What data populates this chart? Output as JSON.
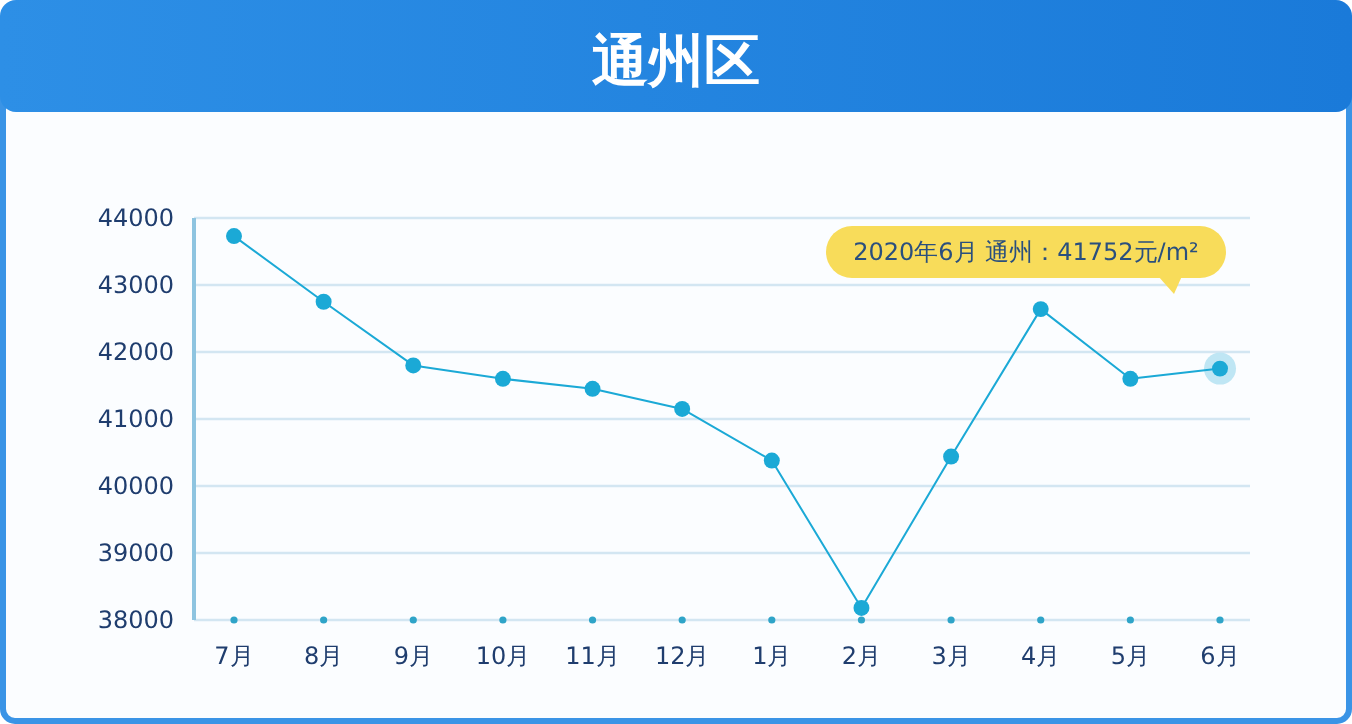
{
  "chart_data": {
    "type": "line",
    "title": "通州区",
    "categories": [
      "7月",
      "8月",
      "9月",
      "10月",
      "11月",
      "12月",
      "1月",
      "2月",
      "3月",
      "4月",
      "5月",
      "6月"
    ],
    "series": [
      {
        "color": "#1ba9d6",
        "values": [
          43730,
          42750,
          41800,
          41600,
          41450,
          41150,
          40380,
          38180,
          40440,
          42640,
          41600,
          41752
        ]
      }
    ],
    "ylim": [
      38000,
      44000
    ],
    "yticks": [
      38000,
      39000,
      40000,
      41000,
      42000,
      43000,
      44000
    ],
    "grid": "y",
    "marker": "circle",
    "line_style": "solid",
    "annotations": [
      "2020年6月 通州：41752元/m²"
    ]
  }
}
